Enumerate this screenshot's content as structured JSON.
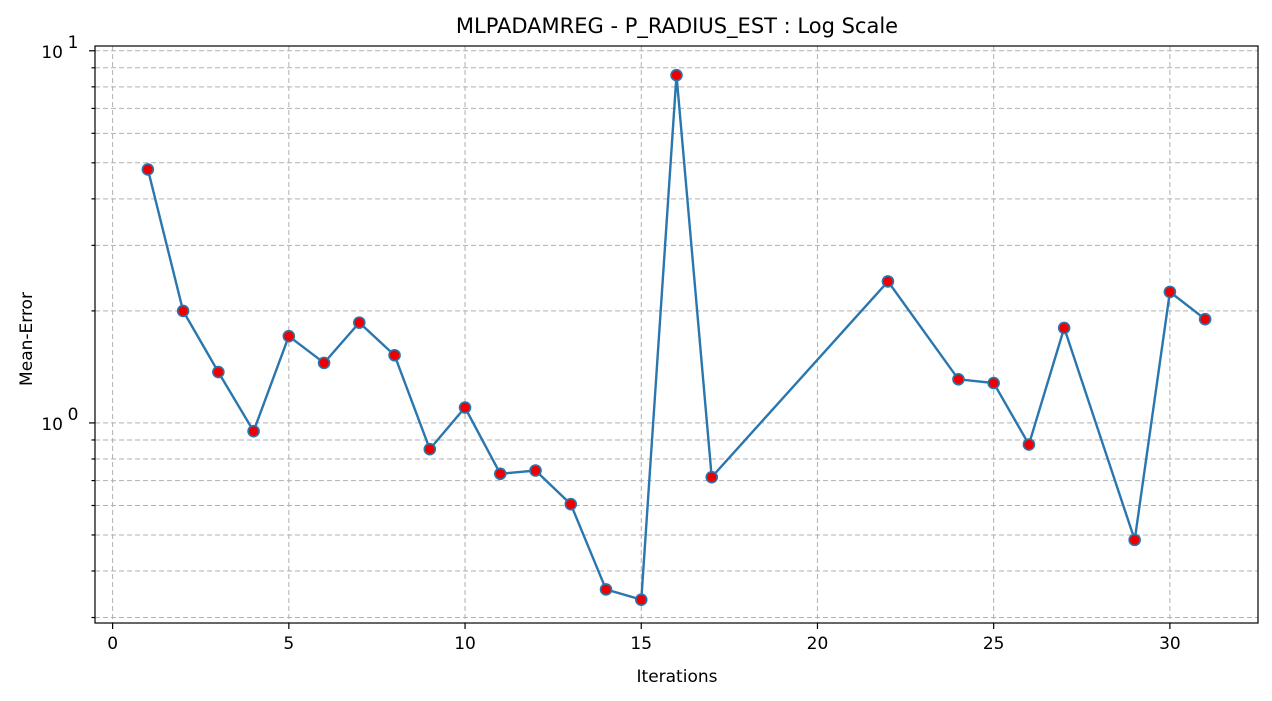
{
  "chart_data": {
    "type": "line",
    "title": "MLPADAMREG - P_RADIUS_EST : Log Scale",
    "xlabel": "Iterations",
    "ylabel": "Mean-Error",
    "yscale": "log",
    "xlim": [
      -0.5,
      32.5
    ],
    "ylim": [
      0.29,
      10.3
    ],
    "xticks": [
      0,
      5,
      10,
      15,
      20,
      25,
      30
    ],
    "yticks_major": [
      1,
      10
    ],
    "ytick_labels": [
      "10",
      "10"
    ],
    "ytick_exponents": [
      "0",
      "1"
    ],
    "grid": true,
    "colors": {
      "line": "#2a76ae",
      "marker_fill": "#ee0000"
    },
    "x": [
      1,
      2,
      3,
      4,
      5,
      6,
      7,
      8,
      9,
      10,
      11,
      12,
      13,
      14,
      15,
      16,
      17,
      22,
      24,
      25,
      26,
      27,
      29,
      30,
      31
    ],
    "y": [
      4.8,
      2.0,
      1.37,
      0.95,
      1.71,
      1.45,
      1.86,
      1.52,
      0.85,
      1.1,
      0.73,
      0.745,
      0.605,
      0.357,
      0.335,
      8.6,
      0.715,
      2.4,
      1.31,
      1.28,
      0.875,
      1.8,
      0.485,
      2.25,
      1.9
    ]
  }
}
